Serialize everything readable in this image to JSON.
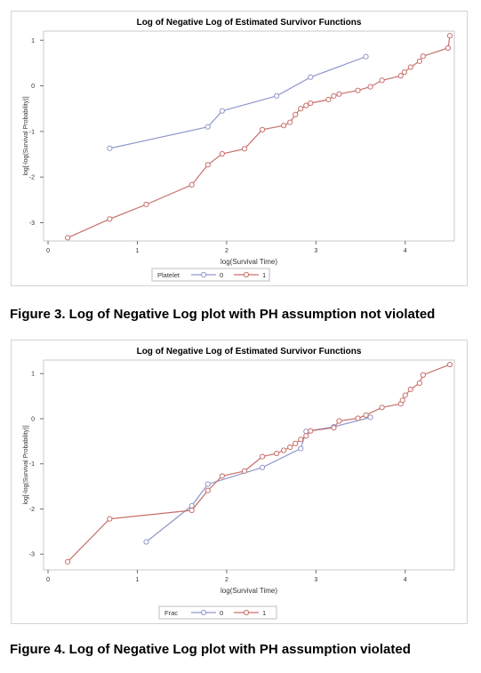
{
  "chart_data": [
    {
      "type": "line",
      "title": "Log of Negative Log of Estimated Survivor Functions",
      "xlabel": "log(Survival Time)",
      "ylabel": "log[-log(Survival Probability)]",
      "xlim": [
        -0.05,
        4.55
      ],
      "ylim": [
        -3.4,
        1.2
      ],
      "xticks": [
        0,
        1,
        2,
        3,
        4
      ],
      "yticks": [
        -3,
        -2,
        -1,
        0,
        1
      ],
      "legend_title": "Platelet",
      "legend_position": "bottom",
      "series": [
        {
          "name": "0",
          "color": "#8f98cc",
          "x": [
            0.69,
            1.79,
            1.95,
            2.56,
            2.94,
            3.56
          ],
          "y": [
            -1.37,
            -0.9,
            -0.55,
            -0.22,
            0.19,
            0.64
          ]
        },
        {
          "name": "1",
          "color": "#c7706a",
          "x": [
            0.22,
            0.69,
            1.1,
            1.61,
            1.79,
            1.95,
            2.2,
            2.4,
            2.64,
            2.71,
            2.77,
            2.83,
            2.89,
            2.94,
            3.14,
            3.2,
            3.26,
            3.47,
            3.61,
            3.74,
            3.95,
            3.99,
            4.06,
            4.16,
            4.2,
            4.48,
            4.5
          ],
          "y": [
            -3.33,
            -2.92,
            -2.6,
            -2.17,
            -1.73,
            -1.49,
            -1.38,
            -0.96,
            -0.87,
            -0.8,
            -0.63,
            -0.5,
            -0.43,
            -0.38,
            -0.3,
            -0.22,
            -0.18,
            -0.1,
            -0.02,
            0.12,
            0.22,
            0.3,
            0.41,
            0.54,
            0.65,
            0.83,
            1.1
          ]
        }
      ]
    },
    {
      "type": "line",
      "title": "Log of Negative Log of Estimated Survivor Functions",
      "xlabel": "log(Survival Time)",
      "ylabel": "log[-log(Survival Probability)]",
      "xlim": [
        -0.05,
        4.55
      ],
      "ylim": [
        -3.35,
        1.3
      ],
      "xticks": [
        0,
        1,
        2,
        3,
        4
      ],
      "yticks": [
        -3,
        -2,
        -1,
        0,
        1
      ],
      "legend_title": "Frac",
      "legend_position": "bottom",
      "series": [
        {
          "name": "0",
          "color": "#8f98cc",
          "x": [
            1.1,
            1.61,
            1.79,
            2.4,
            2.83,
            2.89,
            3.2,
            3.61
          ],
          "y": [
            -2.73,
            -1.93,
            -1.45,
            -1.08,
            -0.66,
            -0.28,
            -0.18,
            0.03
          ]
        },
        {
          "name": "1",
          "color": "#c7706a",
          "x": [
            0.22,
            0.69,
            1.61,
            1.79,
            1.95,
            2.2,
            2.4,
            2.56,
            2.64,
            2.71,
            2.77,
            2.83,
            2.89,
            2.94,
            3.2,
            3.26,
            3.47,
            3.56,
            3.74,
            3.95,
            3.97,
            4.0,
            4.06,
            4.16,
            4.2,
            4.5
          ],
          "y": [
            -3.17,
            -2.22,
            -2.03,
            -1.59,
            -1.27,
            -1.16,
            -0.84,
            -0.77,
            -0.7,
            -0.63,
            -0.55,
            -0.46,
            -0.38,
            -0.27,
            -0.2,
            -0.05,
            0.01,
            0.08,
            0.25,
            0.33,
            0.41,
            0.52,
            0.65,
            0.79,
            0.97,
            1.2
          ]
        }
      ]
    }
  ],
  "captions": {
    "figure3": "Figure 3. Log of Negative Log plot with PH assumption not violated",
    "figure4": "Figure 4. Log of Negative Log plot with PH assumption violated"
  }
}
